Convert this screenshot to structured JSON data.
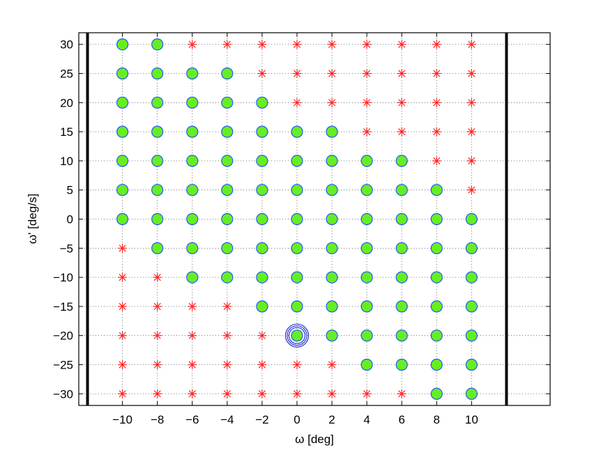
{
  "chart_data": {
    "type": "scatter",
    "title": "",
    "xlabel": "ω [deg]",
    "ylabel": "ω' [deg/s]",
    "xlim": [
      -12.5,
      14.5
    ],
    "ylim": [
      -32,
      32
    ],
    "xticks": [
      -10,
      -8,
      -6,
      -4,
      -2,
      0,
      2,
      4,
      6,
      8,
      10
    ],
    "yticks": [
      30,
      25,
      20,
      15,
      10,
      5,
      0,
      -5,
      -10,
      -15,
      -20,
      -25,
      -30
    ],
    "xtick_labels": [
      "−10",
      "−8",
      "−6",
      "−4",
      "−2",
      "0",
      "2",
      "4",
      "6",
      "8",
      "10"
    ],
    "ytick_labels": [
      "30",
      "25",
      "20",
      "15",
      "10",
      "5",
      "0",
      "−5",
      "−10",
      "−15",
      "−20",
      "−25",
      "−30"
    ],
    "grid": true,
    "vertical_lines": [
      -12,
      12
    ],
    "colors": {
      "green_fill": "#66ee22",
      "green_edge": "#2255ff",
      "red_star": "#ff2222",
      "highlight_ring": "#2233cc"
    },
    "highlight_point": [
      0,
      -20
    ],
    "series": [
      {
        "marker": "circle",
        "points": [
          [
            -10,
            30
          ],
          [
            -8,
            30
          ],
          [
            -10,
            25
          ],
          [
            -8,
            25
          ],
          [
            -6,
            25
          ],
          [
            -4,
            25
          ],
          [
            -10,
            20
          ],
          [
            -8,
            20
          ],
          [
            -6,
            20
          ],
          [
            -4,
            20
          ],
          [
            -2,
            20
          ],
          [
            -10,
            15
          ],
          [
            -8,
            15
          ],
          [
            -6,
            15
          ],
          [
            -4,
            15
          ],
          [
            -2,
            15
          ],
          [
            0,
            15
          ],
          [
            2,
            15
          ],
          [
            -10,
            10
          ],
          [
            -8,
            10
          ],
          [
            -6,
            10
          ],
          [
            -4,
            10
          ],
          [
            -2,
            10
          ],
          [
            0,
            10
          ],
          [
            2,
            10
          ],
          [
            4,
            10
          ],
          [
            6,
            10
          ],
          [
            -10,
            5
          ],
          [
            -8,
            5
          ],
          [
            -6,
            5
          ],
          [
            -4,
            5
          ],
          [
            -2,
            5
          ],
          [
            0,
            5
          ],
          [
            2,
            5
          ],
          [
            4,
            5
          ],
          [
            6,
            5
          ],
          [
            8,
            5
          ],
          [
            -10,
            0
          ],
          [
            -8,
            0
          ],
          [
            -6,
            0
          ],
          [
            -4,
            0
          ],
          [
            -2,
            0
          ],
          [
            0,
            0
          ],
          [
            2,
            0
          ],
          [
            4,
            0
          ],
          [
            6,
            0
          ],
          [
            8,
            0
          ],
          [
            10,
            0
          ],
          [
            -8,
            -5
          ],
          [
            -6,
            -5
          ],
          [
            -4,
            -5
          ],
          [
            -2,
            -5
          ],
          [
            0,
            -5
          ],
          [
            2,
            -5
          ],
          [
            4,
            -5
          ],
          [
            6,
            -5
          ],
          [
            8,
            -5
          ],
          [
            10,
            -5
          ],
          [
            -6,
            -10
          ],
          [
            -4,
            -10
          ],
          [
            -2,
            -10
          ],
          [
            0,
            -10
          ],
          [
            2,
            -10
          ],
          [
            4,
            -10
          ],
          [
            6,
            -10
          ],
          [
            8,
            -10
          ],
          [
            10,
            -10
          ],
          [
            -2,
            -15
          ],
          [
            0,
            -15
          ],
          [
            2,
            -15
          ],
          [
            4,
            -15
          ],
          [
            6,
            -15
          ],
          [
            8,
            -15
          ],
          [
            10,
            -15
          ],
          [
            0,
            -20
          ],
          [
            2,
            -20
          ],
          [
            4,
            -20
          ],
          [
            6,
            -20
          ],
          [
            8,
            -20
          ],
          [
            10,
            -20
          ],
          [
            4,
            -25
          ],
          [
            6,
            -25
          ],
          [
            8,
            -25
          ],
          [
            10,
            -25
          ],
          [
            8,
            -30
          ],
          [
            10,
            -30
          ]
        ]
      },
      {
        "marker": "star",
        "points": [
          [
            -6,
            30
          ],
          [
            -4,
            30
          ],
          [
            -2,
            30
          ],
          [
            0,
            30
          ],
          [
            2,
            30
          ],
          [
            4,
            30
          ],
          [
            6,
            30
          ],
          [
            8,
            30
          ],
          [
            10,
            30
          ],
          [
            -2,
            25
          ],
          [
            0,
            25
          ],
          [
            2,
            25
          ],
          [
            4,
            25
          ],
          [
            6,
            25
          ],
          [
            8,
            25
          ],
          [
            10,
            25
          ],
          [
            0,
            20
          ],
          [
            2,
            20
          ],
          [
            4,
            20
          ],
          [
            6,
            20
          ],
          [
            8,
            20
          ],
          [
            10,
            20
          ],
          [
            4,
            15
          ],
          [
            6,
            15
          ],
          [
            8,
            15
          ],
          [
            10,
            15
          ],
          [
            8,
            10
          ],
          [
            10,
            10
          ],
          [
            10,
            5
          ],
          [
            -10,
            -5
          ],
          [
            -10,
            -10
          ],
          [
            -8,
            -10
          ],
          [
            -10,
            -15
          ],
          [
            -8,
            -15
          ],
          [
            -6,
            -15
          ],
          [
            -4,
            -15
          ],
          [
            -10,
            -20
          ],
          [
            -8,
            -20
          ],
          [
            -6,
            -20
          ],
          [
            -4,
            -20
          ],
          [
            -2,
            -20
          ],
          [
            -10,
            -25
          ],
          [
            -8,
            -25
          ],
          [
            -6,
            -25
          ],
          [
            -4,
            -25
          ],
          [
            -2,
            -25
          ],
          [
            0,
            -25
          ],
          [
            2,
            -25
          ],
          [
            -10,
            -30
          ],
          [
            -8,
            -30
          ],
          [
            -6,
            -30
          ],
          [
            -4,
            -30
          ],
          [
            -2,
            -30
          ],
          [
            0,
            -30
          ],
          [
            2,
            -30
          ],
          [
            4,
            -30
          ],
          [
            6,
            -30
          ]
        ]
      }
    ]
  }
}
